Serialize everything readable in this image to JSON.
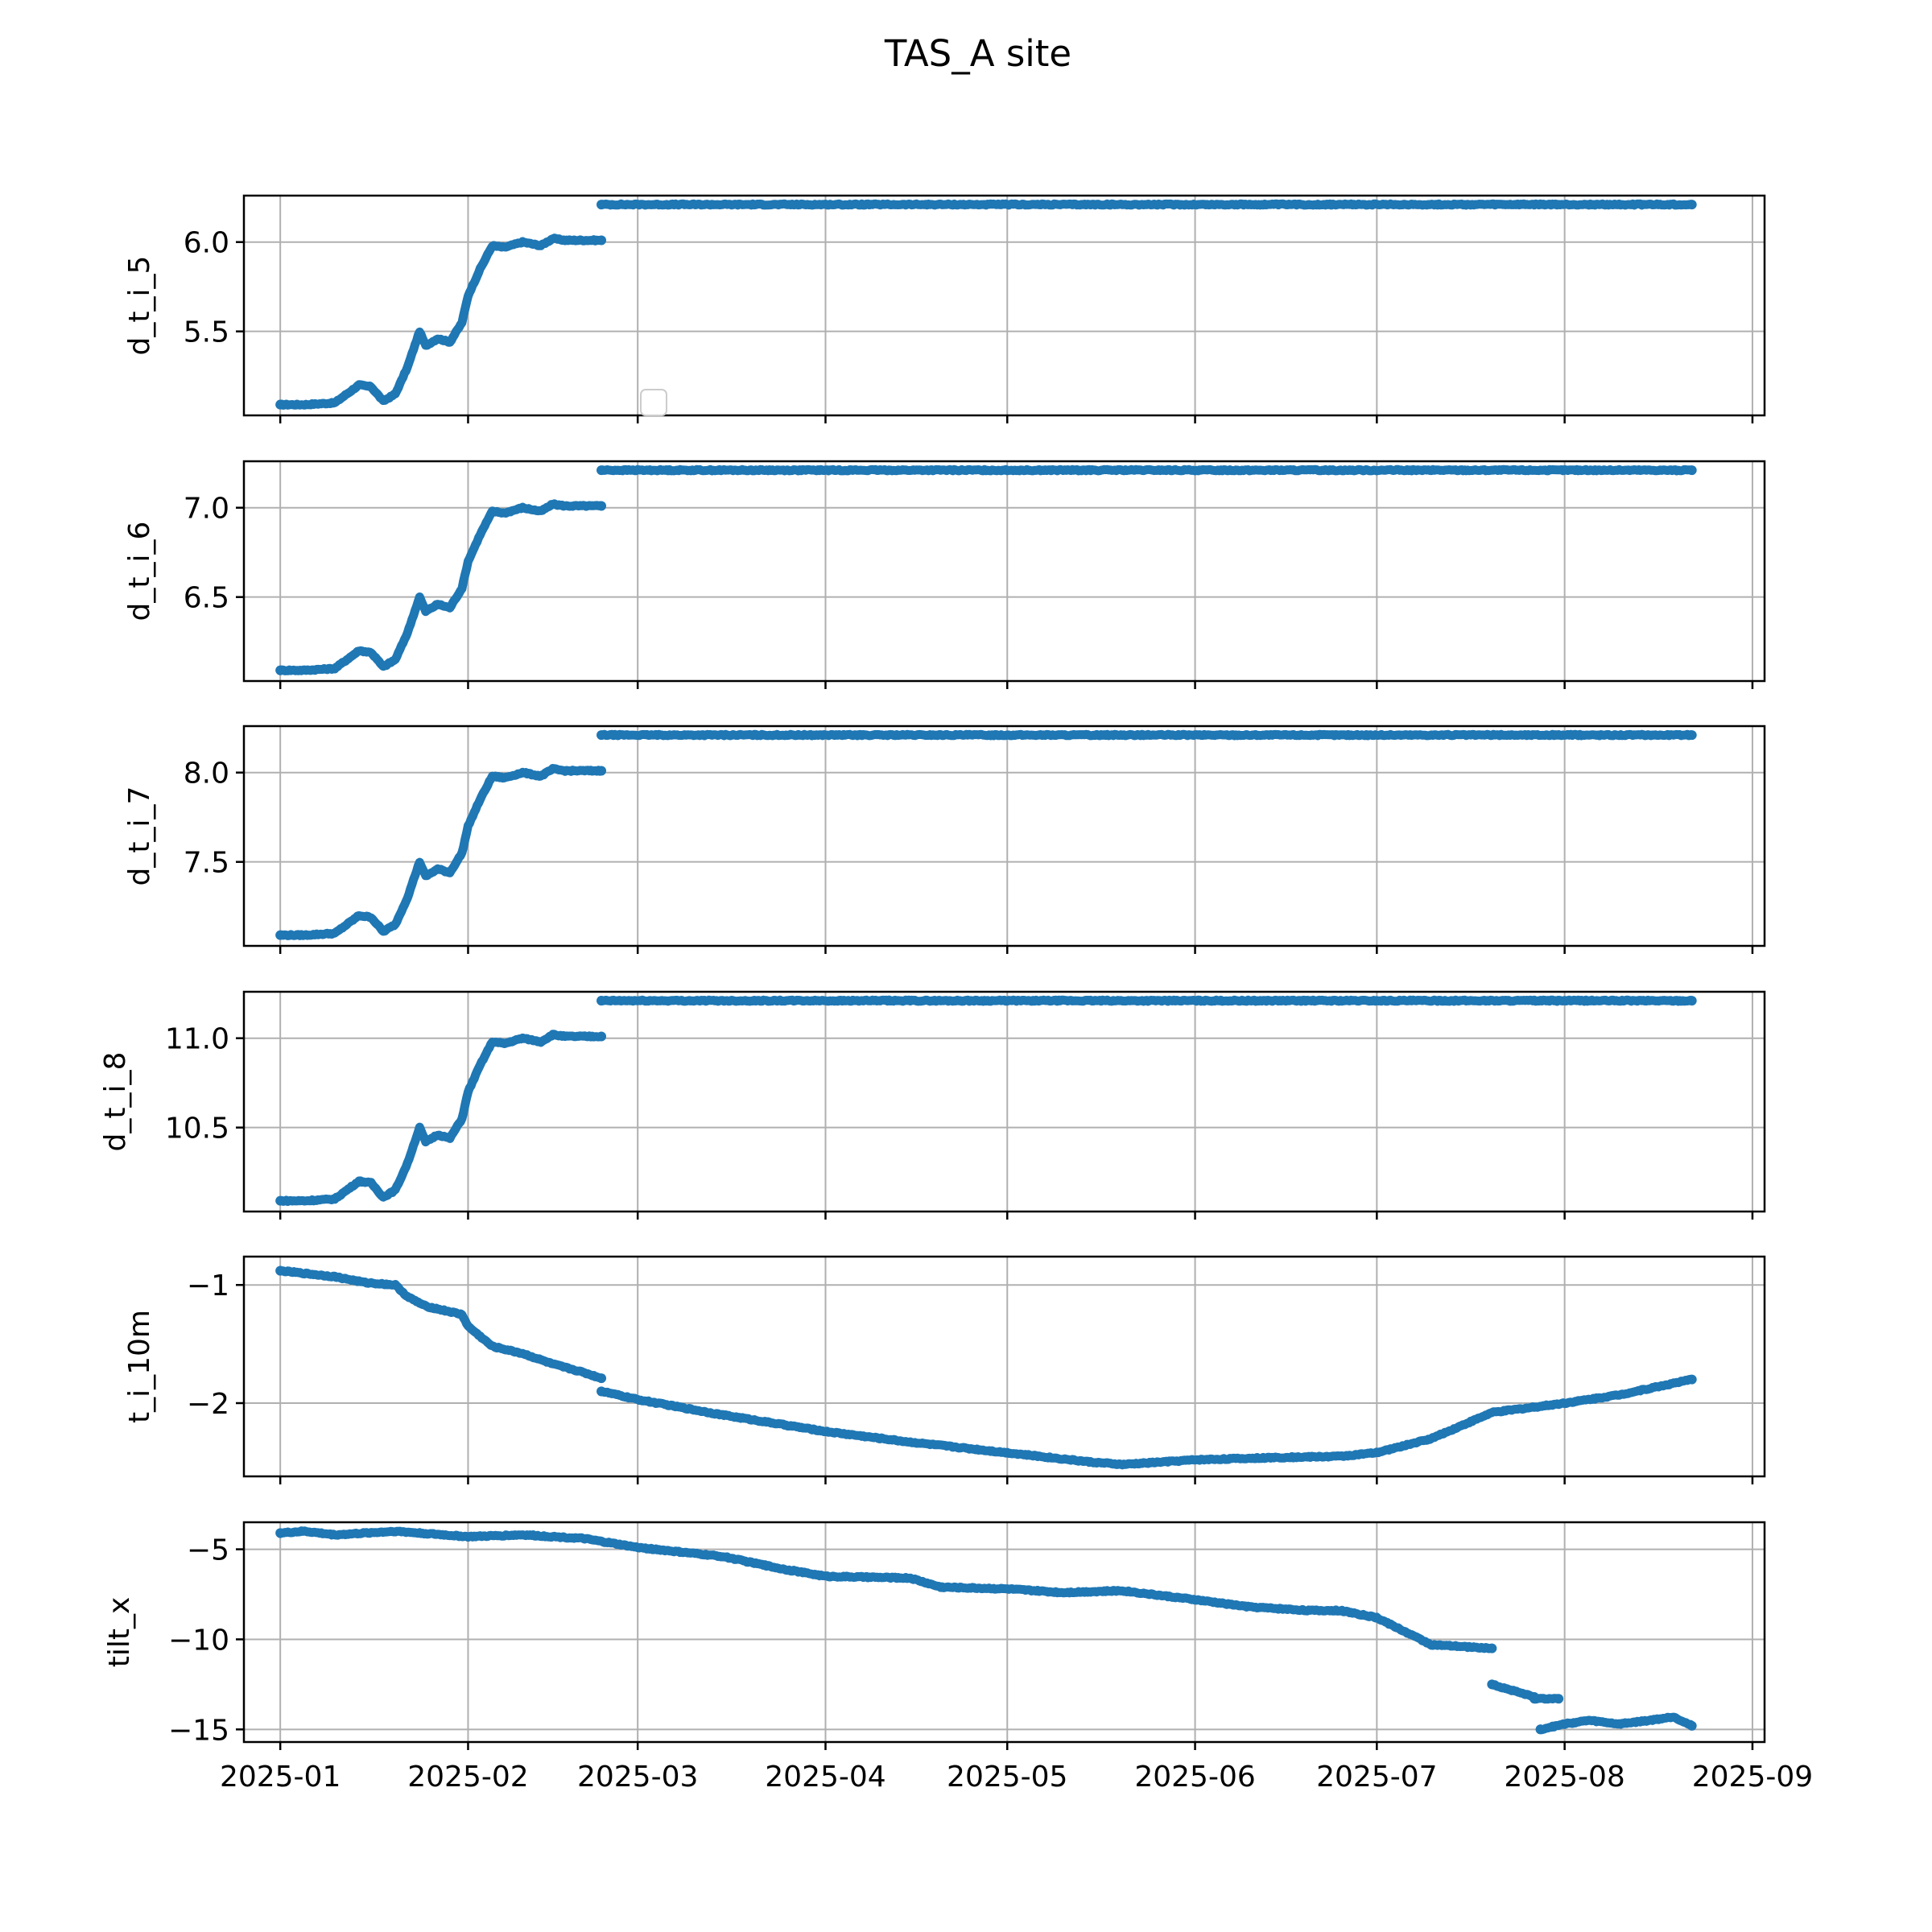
{
  "figure": {
    "title": "TAS_A site"
  },
  "style": {
    "series_color": "#1f77b4",
    "grid_color": "#b0b0b0"
  },
  "chart_data": [
    {
      "type": "line",
      "ylabel": "d_t_i_5",
      "ylim": [
        5.03,
        6.26
      ],
      "yticks": [
        5.5,
        6.0
      ],
      "ytick_labels": [
        "5.5",
        "6.0"
      ],
      "grid": true,
      "legend": "lower-left, empty",
      "series": [
        {
          "segments": [
            {
              "x": [
                "2025-01-01",
                "2025-01-05",
                "2025-01-10",
                "2025-01-14",
                "2025-01-16",
                "2025-01-18",
                "2025-01-20",
                "2025-01-22",
                "2025-01-24",
                "2025-01-25",
                "2025-01-27",
                "2025-01-29",
                "2025-01-31",
                "2025-02-01",
                "2025-02-03",
                "2025-02-05",
                "2025-02-07",
                "2025-02-10",
                "2025-02-13",
                "2025-02-15",
                "2025-02-17",
                "2025-02-20",
                "2025-02-23"
              ],
              "y": [
                5.09,
                5.09,
                5.1,
                5.2,
                5.19,
                5.11,
                5.15,
                5.3,
                5.5,
                5.42,
                5.46,
                5.44,
                5.55,
                5.7,
                5.85,
                5.98,
                5.97,
                6.0,
                5.98,
                6.02,
                6.01,
                6.01,
                6.01
              ]
            },
            {
              "x": [
                "2025-02-23",
                "2025-08-22"
              ],
              "y": [
                6.21,
                6.21
              ]
            }
          ]
        }
      ]
    },
    {
      "type": "line",
      "ylabel": "d_t_i_6",
      "ylim": [
        6.03,
        7.26
      ],
      "yticks": [
        6.5,
        7.0
      ],
      "ytick_labels": [
        "6.5",
        "7.0"
      ],
      "grid": true,
      "series": [
        {
          "segments": [
            {
              "x": [
                "2025-01-01",
                "2025-01-05",
                "2025-01-10",
                "2025-01-14",
                "2025-01-16",
                "2025-01-18",
                "2025-01-20",
                "2025-01-22",
                "2025-01-24",
                "2025-01-25",
                "2025-01-27",
                "2025-01-29",
                "2025-01-31",
                "2025-02-01",
                "2025-02-03",
                "2025-02-05",
                "2025-02-07",
                "2025-02-10",
                "2025-02-13",
                "2025-02-15",
                "2025-02-17",
                "2025-02-20",
                "2025-02-23"
              ],
              "y": [
                6.09,
                6.09,
                6.1,
                6.2,
                6.19,
                6.11,
                6.15,
                6.3,
                6.5,
                6.42,
                6.46,
                6.44,
                6.55,
                6.7,
                6.85,
                6.98,
                6.97,
                7.0,
                6.98,
                7.02,
                7.01,
                7.01,
                7.01
              ]
            },
            {
              "x": [
                "2025-02-23",
                "2025-08-22"
              ],
              "y": [
                7.21,
                7.21
              ]
            }
          ]
        }
      ]
    },
    {
      "type": "line",
      "ylabel": "d_t_i_7",
      "ylim": [
        7.03,
        8.26
      ],
      "yticks": [
        7.5,
        8.0
      ],
      "ytick_labels": [
        "7.5",
        "8.0"
      ],
      "grid": true,
      "series": [
        {
          "segments": [
            {
              "x": [
                "2025-01-01",
                "2025-01-05",
                "2025-01-10",
                "2025-01-14",
                "2025-01-16",
                "2025-01-18",
                "2025-01-20",
                "2025-01-22",
                "2025-01-24",
                "2025-01-25",
                "2025-01-27",
                "2025-01-29",
                "2025-01-31",
                "2025-02-01",
                "2025-02-03",
                "2025-02-05",
                "2025-02-07",
                "2025-02-10",
                "2025-02-13",
                "2025-02-15",
                "2025-02-17",
                "2025-02-20",
                "2025-02-23"
              ],
              "y": [
                7.09,
                7.09,
                7.1,
                7.2,
                7.19,
                7.11,
                7.15,
                7.3,
                7.5,
                7.42,
                7.46,
                7.44,
                7.55,
                7.7,
                7.85,
                7.98,
                7.97,
                8.0,
                7.98,
                8.02,
                8.01,
                8.01,
                8.01
              ]
            },
            {
              "x": [
                "2025-02-23",
                "2025-08-22"
              ],
              "y": [
                8.21,
                8.21
              ]
            }
          ]
        }
      ]
    },
    {
      "type": "line",
      "ylabel": "d_t_i_8",
      "ylim": [
        10.03,
        11.26
      ],
      "yticks": [
        10.5,
        11.0
      ],
      "ytick_labels": [
        "10.5",
        "11.0"
      ],
      "grid": true,
      "series": [
        {
          "segments": [
            {
              "x": [
                "2025-01-01",
                "2025-01-05",
                "2025-01-10",
                "2025-01-14",
                "2025-01-16",
                "2025-01-18",
                "2025-01-20",
                "2025-01-22",
                "2025-01-24",
                "2025-01-25",
                "2025-01-27",
                "2025-01-29",
                "2025-01-31",
                "2025-02-01",
                "2025-02-03",
                "2025-02-05",
                "2025-02-07",
                "2025-02-10",
                "2025-02-13",
                "2025-02-15",
                "2025-02-17",
                "2025-02-20",
                "2025-02-23"
              ],
              "y": [
                10.09,
                10.09,
                10.1,
                10.2,
                10.19,
                10.11,
                10.15,
                10.3,
                10.5,
                10.42,
                10.46,
                10.44,
                10.55,
                10.7,
                10.85,
                10.98,
                10.97,
                11.0,
                10.98,
                11.02,
                11.01,
                11.01,
                11.01
              ]
            },
            {
              "x": [
                "2025-02-23",
                "2025-08-22"
              ],
              "y": [
                11.21,
                11.21
              ]
            }
          ]
        }
      ]
    },
    {
      "type": "line",
      "ylabel": "t_i_10m",
      "ylim": [
        -2.62,
        -0.76
      ],
      "yticks": [
        -2,
        -1
      ],
      "ytick_labels": [
        "−2",
        "−1"
      ],
      "grid": true,
      "series": [
        {
          "segments": [
            {
              "x": [
                "2025-01-01",
                "2025-01-10",
                "2025-01-15",
                "2025-01-20",
                "2025-01-22",
                "2025-01-25",
                "2025-01-31",
                "2025-02-01",
                "2025-02-05",
                "2025-02-10",
                "2025-02-15",
                "2025-02-20",
                "2025-02-23"
              ],
              "y": [
                -0.88,
                -0.93,
                -0.98,
                -1.0,
                -1.1,
                -1.18,
                -1.25,
                -1.35,
                -1.52,
                -1.58,
                -1.67,
                -1.74,
                -1.79
              ]
            },
            {
              "x": [
                "2025-02-23",
                "2025-03-01",
                "2025-03-15",
                "2025-04-01",
                "2025-04-15",
                "2025-05-01",
                "2025-05-15",
                "2025-05-20",
                "2025-06-01",
                "2025-06-15",
                "2025-06-25",
                "2025-07-01",
                "2025-07-10",
                "2025-07-20",
                "2025-08-01",
                "2025-08-10",
                "2025-08-22"
              ],
              "y": [
                -1.9,
                -1.97,
                -2.1,
                -2.24,
                -2.33,
                -2.42,
                -2.5,
                -2.52,
                -2.48,
                -2.46,
                -2.45,
                -2.42,
                -2.3,
                -2.08,
                -2.0,
                -1.93,
                -1.8
              ]
            }
          ]
        }
      ]
    },
    {
      "type": "line",
      "ylabel": "tilt_x",
      "ylim": [
        -15.7,
        -3.5
      ],
      "yticks": [
        -15,
        -10,
        -5
      ],
      "ytick_labels": [
        "−15",
        "−10",
        "−5"
      ],
      "grid": true,
      "series": [
        {
          "segments": [
            {
              "x": [
                "2025-01-01",
                "2025-01-05",
                "2025-01-10",
                "2025-01-20",
                "2025-02-01",
                "2025-02-10",
                "2025-02-20",
                "2025-03-01",
                "2025-03-15",
                "2025-03-25",
                "2025-04-01",
                "2025-04-15",
                "2025-04-20",
                "2025-05-01",
                "2025-05-10",
                "2025-05-20",
                "2025-06-01",
                "2025-06-10",
                "2025-06-20",
                "2025-06-25",
                "2025-07-01",
                "2025-07-10",
                "2025-07-20"
              ],
              "y": [
                -4.1,
                -4.0,
                -4.2,
                -4.0,
                -4.3,
                -4.2,
                -4.4,
                -4.9,
                -5.4,
                -6.1,
                -6.5,
                -6.6,
                -7.1,
                -7.2,
                -7.4,
                -7.3,
                -7.8,
                -8.2,
                -8.4,
                -8.4,
                -8.8,
                -10.3,
                -10.5
              ]
            },
            {
              "x": [
                "2025-07-20",
                "2025-07-27"
              ],
              "y": [
                -12.5,
                -13.2
              ]
            },
            {
              "x": [
                "2025-07-27",
                "2025-07-31"
              ],
              "y": [
                -13.3,
                -13.3
              ]
            },
            {
              "x": [
                "2025-07-28",
                "2025-08-01",
                "2025-08-05",
                "2025-08-10",
                "2025-08-15",
                "2025-08-19",
                "2025-08-22"
              ],
              "y": [
                -15.0,
                -14.7,
                -14.5,
                -14.7,
                -14.5,
                -14.3,
                -14.8
              ]
            }
          ]
        }
      ],
      "xticks": [
        "2025-01-01",
        "2025-02-01",
        "2025-03-01",
        "2025-04-01",
        "2025-05-01",
        "2025-06-01",
        "2025-07-01",
        "2025-08-01",
        "2025-09-01"
      ],
      "xtick_labels": [
        "2025-01",
        "2025-02",
        "2025-03",
        "2025-04",
        "2025-05",
        "2025-06",
        "2025-07",
        "2025-08",
        "2025-09"
      ]
    }
  ]
}
